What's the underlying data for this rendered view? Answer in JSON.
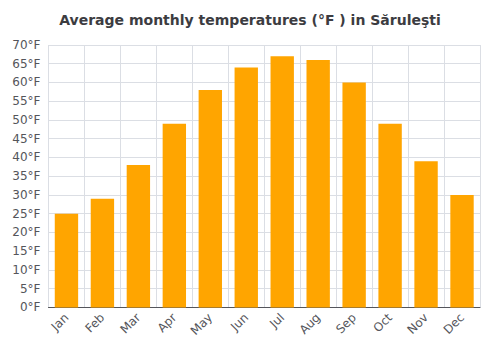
{
  "chart_data": {
    "type": "bar",
    "title": "Average monthly temperatures (°F ) in Săruleşti",
    "categories": [
      "Jan",
      "Feb",
      "Mar",
      "Apr",
      "May",
      "Jun",
      "Jul",
      "Aug",
      "Sep",
      "Oct",
      "Nov",
      "Dec"
    ],
    "values": [
      25,
      29,
      38,
      49,
      58,
      64,
      67,
      66,
      60,
      49,
      39,
      30
    ],
    "color": "#FFA500",
    "ylim": [
      0,
      70
    ],
    "yticks": [
      {
        "value": 0,
        "label": "0°F"
      },
      {
        "value": 5,
        "label": "5°F"
      },
      {
        "value": 10,
        "label": "10°F"
      },
      {
        "value": 15,
        "label": "15°F"
      },
      {
        "value": 20,
        "label": "20°F"
      },
      {
        "value": 25,
        "label": "25°F"
      },
      {
        "value": 30,
        "label": "30°F"
      },
      {
        "value": 35,
        "label": "35°F"
      },
      {
        "value": 40,
        "label": "40°F"
      },
      {
        "value": 45,
        "label": "45°F"
      },
      {
        "value": 50,
        "label": "50°F"
      },
      {
        "value": 55,
        "label": "55°F"
      },
      {
        "value": 60,
        "label": "60°F"
      },
      {
        "value": 65,
        "label": "65°F"
      },
      {
        "value": 70,
        "label": "70°F"
      }
    ],
    "grid": true
  }
}
